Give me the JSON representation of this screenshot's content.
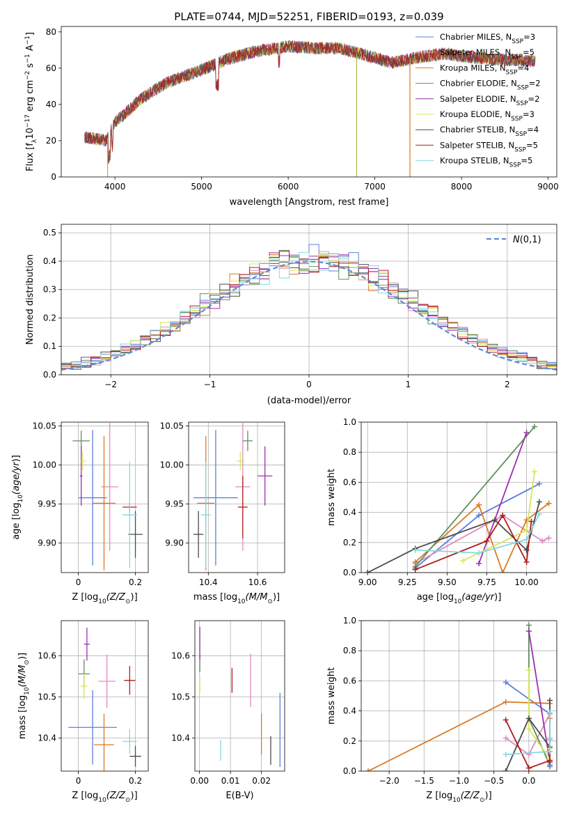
{
  "figure": {
    "title": "PLATE=0744, MJD=52251, FIBERID=0193, z=0.039"
  },
  "legend_entries": [
    {
      "key": "chabrier_miles",
      "label": "Chabrier MILES, N",
      "sub": "SSP",
      "tail": "=3",
      "color": "#5b7fdc"
    },
    {
      "key": "salpeter_miles",
      "label": "Salpeter MILES, N",
      "sub": "SSP",
      "tail": "=5",
      "color": "#e18ac0"
    },
    {
      "key": "kroupa_miles",
      "label": "Kroupa MILES, N",
      "sub": "SSP",
      "tail": "=4",
      "color": "#d97a26"
    },
    {
      "key": "chabrier_elodie",
      "label": "Chabrier ELODIE, N",
      "sub": "SSP",
      "tail": "=2",
      "color": "#5e8f5e"
    },
    {
      "key": "salpeter_elodie",
      "label": "Salpeter ELODIE, N",
      "sub": "SSP",
      "tail": "=2",
      "color": "#9b2fae"
    },
    {
      "key": "kroupa_elodie",
      "label": "Kroupa ELODIE, N",
      "sub": "SSP",
      "tail": "=3",
      "color": "#d4e85a"
    },
    {
      "key": "chabrier_stelib",
      "label": "Chabrier STELIB, N",
      "sub": "SSP",
      "tail": "=4",
      "color": "#4a4a4a"
    },
    {
      "key": "salpeter_stelib",
      "label": "Salpeter STELIB, N",
      "sub": "SSP",
      "tail": "=5",
      "color": "#b01c1c"
    },
    {
      "key": "kroupa_stelib",
      "label": "Kroupa STELIB, N",
      "sub": "SSP",
      "tail": "=5",
      "color": "#86d8de"
    }
  ],
  "chart_data": [
    {
      "id": "spectrum",
      "type": "line",
      "xlabel": "wavelength [Angstrom, rest frame]",
      "ylabel": "Flux [f",
      "ylabel_parts": {
        "a": "Flux [f",
        "sub": "λ",
        "b": "10",
        "sup1": "−17",
        "c": " erg cm",
        "sup2": "−2",
        "d": " s",
        "sup3": "−1",
        "e": " A",
        "sup4": "−1",
        "f": "]"
      },
      "xlim": [
        3380,
        9100
      ],
      "ylim": [
        0,
        83
      ],
      "xticks": [
        4000,
        5000,
        6000,
        7000,
        8000,
        9000
      ],
      "yticks": [
        0,
        20,
        40,
        60,
        80
      ],
      "continuum_x": [
        3650,
        3900,
        4000,
        4300,
        4600,
        5000,
        5300,
        5600,
        6000,
        6300,
        6600,
        6900,
        7200,
        7500,
        7800,
        8100,
        8400,
        8800
      ],
      "continuum_y": [
        22,
        20,
        30,
        43,
        52,
        59,
        65,
        69,
        72,
        71,
        71,
        67,
        63,
        66,
        68,
        66,
        65,
        64
      ],
      "spikes": [
        {
          "x": 3915,
          "color": "#a9b94a"
        },
        {
          "x": 6790,
          "color": "#a9b94a"
        },
        {
          "x": 7405,
          "color": "#d97a26"
        }
      ]
    },
    {
      "id": "residuals",
      "type": "histogram",
      "xlabel": "(data-model)/error",
      "ylabel": "Normed distribution",
      "xlim": [
        -2.5,
        2.5
      ],
      "ylim": [
        0,
        0.53
      ],
      "xticks": [
        -2,
        -1,
        0,
        1,
        2
      ],
      "yticks": [
        0.0,
        0.1,
        0.2,
        0.3,
        0.4,
        0.5
      ],
      "reference_label": "N(0,1)",
      "bin_width": 0.1
    },
    {
      "id": "age_vs_Z",
      "type": "scatter",
      "xlabel": "Z [log",
      "ylabel": "age  [log",
      "xlim": [
        -0.06,
        0.245
      ],
      "ylim": [
        9.862,
        10.055
      ],
      "xticks": [
        0.0,
        0.2
      ],
      "yticks": [
        9.9,
        9.95,
        10.0,
        10.05
      ],
      "points": [
        {
          "s": 0,
          "x": 0.05,
          "y": 9.958,
          "ex": [
            0.05,
            0.05
          ],
          "ey": [
            0.087,
            0.087
          ]
        },
        {
          "s": 1,
          "x": 0.11,
          "y": 9.972,
          "ex": [
            0.03,
            0.03
          ],
          "ey": [
            0.082,
            0.082
          ]
        },
        {
          "s": 2,
          "x": 0.09,
          "y": 9.951,
          "ex": [
            0.04,
            0.04
          ],
          "ey": [
            0.086,
            0.086
          ]
        },
        {
          "s": 3,
          "x": 0.01,
          "y": 10.031,
          "ex": [
            0.03,
            0.03
          ],
          "ey": [
            0.013,
            0.013
          ]
        },
        {
          "s": 4,
          "x": 0.01,
          "y": 9.986,
          "ex": [
            0.005,
            0.005
          ],
          "ey": [
            0.038,
            0.038
          ]
        },
        {
          "s": 5,
          "x": 0.015,
          "y": 10.005,
          "ex": [
            0.012,
            0.012
          ],
          "ey": [
            0.012,
            0.012
          ]
        },
        {
          "s": 6,
          "x": 0.2,
          "y": 9.911,
          "ex": [
            0.025,
            0.025
          ],
          "ey": [
            0.03,
            0.03
          ]
        },
        {
          "s": 7,
          "x": 0.18,
          "y": 9.946,
          "ex": [
            0.025,
            0.025
          ],
          "ey": [
            0.006,
            0.006
          ]
        },
        {
          "s": 8,
          "x": 0.18,
          "y": 9.936,
          "ex": [
            0.025,
            0.025
          ],
          "ey": [
            0.068,
            0.068
          ]
        }
      ]
    },
    {
      "id": "age_vs_mass",
      "type": "scatter",
      "xlabel": "mass [log",
      "ylabel": "",
      "xlim": [
        10.32,
        10.71
      ],
      "ylim": [
        9.862,
        10.055
      ],
      "xticks": [
        10.4,
        10.6
      ],
      "yticks": [
        9.9,
        9.95,
        10.0,
        10.05
      ],
      "points": [
        {
          "s": 0,
          "x": 10.43,
          "y": 9.958,
          "ex": [
            0.09,
            0.09
          ],
          "ey": [
            0.087,
            0.087
          ]
        },
        {
          "s": 1,
          "x": 10.54,
          "y": 9.972,
          "ex": [
            0.03,
            0.03
          ],
          "ey": [
            0.082,
            0.082
          ]
        },
        {
          "s": 2,
          "x": 10.39,
          "y": 9.951,
          "ex": [
            0.035,
            0.035
          ],
          "ey": [
            0.086,
            0.086
          ]
        },
        {
          "s": 3,
          "x": 10.56,
          "y": 10.031,
          "ex": [
            0.02,
            0.02
          ],
          "ey": [
            0.013,
            0.013
          ]
        },
        {
          "s": 4,
          "x": 10.63,
          "y": 9.986,
          "ex": [
            0.03,
            0.03
          ],
          "ey": [
            0.038,
            0.038
          ]
        },
        {
          "s": 5,
          "x": 10.53,
          "y": 10.005,
          "ex": [
            0.015,
            0.015
          ],
          "ey": [
            0.012,
            0.012
          ]
        },
        {
          "s": 6,
          "x": 10.36,
          "y": 9.911,
          "ex": [
            0.02,
            0.02
          ],
          "ey": [
            0.03,
            0.03
          ]
        },
        {
          "s": 7,
          "x": 10.54,
          "y": 9.946,
          "ex": [
            0.02,
            0.02
          ],
          "ey": [
            0.04,
            0.04
          ]
        },
        {
          "s": 8,
          "x": 10.39,
          "y": 9.936,
          "ex": [
            0.02,
            0.02
          ],
          "ey": [
            0.068,
            0.068
          ]
        }
      ]
    },
    {
      "id": "mass_weight_vs_age",
      "type": "line",
      "xlabel": "age  [log",
      "ylabel": "mass weight",
      "xlim": [
        8.96,
        10.19
      ],
      "ylim": [
        0,
        1
      ],
      "xticks": [
        9.0,
        9.25,
        9.5,
        9.75,
        10.0
      ],
      "xticklabels": [
        "9.00",
        "9.25",
        "9.50",
        "9.75",
        "10.00"
      ],
      "yticks": [
        0.0,
        0.2,
        0.4,
        0.6,
        0.8,
        1.0
      ],
      "series": [
        {
          "s": 0,
          "x": [
            9.3,
            9.7,
            10.08
          ],
          "y": [
            0.03,
            0.38,
            0.59
          ]
        },
        {
          "s": 1,
          "x": [
            9.3,
            9.85,
            10.1,
            10.14
          ],
          "y": [
            0.06,
            0.38,
            0.21,
            0.23
          ]
        },
        {
          "s": 2,
          "x": [
            9.3,
            9.7,
            9.85,
            10.0,
            10.14
          ],
          "y": [
            0.07,
            0.45,
            0.0,
            0.35,
            0.46
          ]
        },
        {
          "s": 3,
          "x": [
            9.3,
            10.05
          ],
          "y": [
            0.04,
            0.97
          ]
        },
        {
          "s": 4,
          "x": [
            9.7,
            10.0
          ],
          "y": [
            0.06,
            0.93
          ]
        },
        {
          "s": 5,
          "x": [
            9.6,
            10.0,
            10.05
          ],
          "y": [
            0.08,
            0.28,
            0.67
          ]
        },
        {
          "s": 6,
          "x": [
            9.0,
            9.3,
            9.8,
            10.0,
            10.08
          ],
          "y": [
            0.0,
            0.16,
            0.35,
            0.15,
            0.47
          ]
        },
        {
          "s": 7,
          "x": [
            9.3,
            9.75,
            9.85,
            10.0,
            10.03
          ],
          "y": [
            0.02,
            0.21,
            0.38,
            0.07,
            0.34
          ]
        },
        {
          "s": 8,
          "x": [
            9.3,
            9.7,
            10.0,
            10.08
          ],
          "y": [
            0.15,
            0.13,
            0.22,
            0.39
          ]
        }
      ]
    },
    {
      "id": "mass_vs_Z",
      "type": "scatter",
      "xlabel": "Z [log",
      "ylabel": "mass [log",
      "xlim": [
        -0.06,
        0.245
      ],
      "ylim": [
        10.32,
        10.685
      ],
      "xticks": [
        0.0,
        0.2
      ],
      "yticks": [
        10.4,
        10.5,
        10.6
      ],
      "points": [
        {
          "s": 0,
          "x": 0.05,
          "y": 10.426,
          "ex": [
            0.085,
            0.085
          ],
          "ey": [
            0.09,
            0.09
          ]
        },
        {
          "s": 1,
          "x": 0.1,
          "y": 10.538,
          "ex": [
            0.03,
            0.03
          ],
          "ey": [
            0.065,
            0.065
          ]
        },
        {
          "s": 2,
          "x": 0.09,
          "y": 10.384,
          "ex": [
            0.035,
            0.035
          ],
          "ey": [
            0.075,
            0.075
          ]
        },
        {
          "s": 3,
          "x": 0.02,
          "y": 10.556,
          "ex": [
            0.02,
            0.02
          ],
          "ey": [
            0.035,
            0.035
          ]
        },
        {
          "s": 4,
          "x": 0.03,
          "y": 10.628,
          "ex": [
            0.01,
            0.01
          ],
          "ey": [
            0.04,
            0.04
          ]
        },
        {
          "s": 5,
          "x": 0.02,
          "y": 10.526,
          "ex": [
            0.012,
            0.012
          ],
          "ey": [
            0.03,
            0.03
          ]
        },
        {
          "s": 6,
          "x": 0.2,
          "y": 10.356,
          "ex": [
            0.02,
            0.02
          ],
          "ey": [
            0.025,
            0.025
          ]
        },
        {
          "s": 7,
          "x": 0.18,
          "y": 10.54,
          "ex": [
            0.02,
            0.02
          ],
          "ey": [
            0.035,
            0.035
          ]
        },
        {
          "s": 8,
          "x": 0.18,
          "y": 10.392,
          "ex": [
            0.025,
            0.025
          ],
          "ey": [
            0.03,
            0.03
          ]
        }
      ]
    },
    {
      "id": "mass_vs_ebv",
      "type": "scatter",
      "xlabel": "E(B-V)",
      "ylabel": "",
      "xlim": [
        -0.0015,
        0.0275
      ],
      "ylim": [
        10.32,
        10.685
      ],
      "xticks": [
        0.0,
        0.01,
        0.02
      ],
      "xticklabels": [
        "0.00",
        "0.01",
        "0.02"
      ],
      "yticks": [
        10.4,
        10.5,
        10.6
      ],
      "points": [
        {
          "s": 0,
          "x": 0.026,
          "y": 10.42,
          "ex": [
            0,
            0
          ],
          "ey": [
            0.09,
            0.09
          ]
        },
        {
          "s": 1,
          "x": 0.0165,
          "y": 10.54,
          "ex": [
            0,
            0
          ],
          "ey": [
            0.065,
            0.065
          ]
        },
        {
          "s": 2,
          "x": 0.02,
          "y": 10.41,
          "ex": [
            0,
            0
          ],
          "ey": [
            0.05,
            0.05
          ]
        },
        {
          "s": 3,
          "x": 0.0001,
          "y": 10.58,
          "ex": [
            0,
            0
          ],
          "ey": [
            0.02,
            0.02
          ]
        },
        {
          "s": 4,
          "x": 0.0001,
          "y": 10.63,
          "ex": [
            0,
            0
          ],
          "ey": [
            0.04,
            0.04
          ]
        },
        {
          "s": 5,
          "x": 0.0001,
          "y": 10.53,
          "ex": [
            0,
            0
          ],
          "ey": [
            0.02,
            0.02
          ]
        },
        {
          "s": 6,
          "x": 0.023,
          "y": 10.37,
          "ex": [
            0,
            0
          ],
          "ey": [
            0.035,
            0.035
          ]
        },
        {
          "s": 7,
          "x": 0.0105,
          "y": 10.54,
          "ex": [
            0,
            0
          ],
          "ey": [
            0.03,
            0.03
          ]
        },
        {
          "s": 8,
          "x": 0.0068,
          "y": 10.37,
          "ex": [
            0,
            0
          ],
          "ey": [
            0.025,
            0.025
          ]
        }
      ]
    },
    {
      "id": "mass_weight_vs_Z",
      "type": "line",
      "xlabel": "Z [log",
      "ylabel": "mass weight",
      "xlim": [
        -2.4,
        0.4
      ],
      "ylim": [
        0,
        1
      ],
      "xticks": [
        -2.0,
        -1.5,
        -1.0,
        -0.5,
        0.0
      ],
      "xticklabels": [
        "−2.0",
        "−1.5",
        "−1.0",
        "−0.5",
        "0.0"
      ],
      "yticks": [
        0.0,
        0.2,
        0.4,
        0.6,
        0.8,
        1.0
      ],
      "series": [
        {
          "s": 0,
          "x": [
            -0.33,
            0.3,
            0.3
          ],
          "y": [
            0.59,
            0.38,
            0.03
          ]
        },
        {
          "s": 1,
          "x": [
            -0.33,
            0.0,
            0.3,
            0.3
          ],
          "y": [
            0.22,
            0.11,
            0.38,
            0.21
          ]
        },
        {
          "s": 2,
          "x": [
            -2.3,
            -0.33,
            0.3,
            0.3
          ],
          "y": [
            0.0,
            0.46,
            0.45,
            0.35
          ]
        },
        {
          "s": 3,
          "x": [
            0.0,
            0.0,
            0.3
          ],
          "y": [
            0.97,
            0.35,
            0.04
          ]
        },
        {
          "s": 4,
          "x": [
            0.0,
            0.3
          ],
          "y": [
            0.93,
            0.06
          ]
        },
        {
          "s": 5,
          "x": [
            0.0,
            0.0,
            0.3,
            0.3
          ],
          "y": [
            0.67,
            0.28,
            0.08,
            0.15
          ]
        },
        {
          "s": 6,
          "x": [
            -0.33,
            0.0,
            0.3,
            0.3
          ],
          "y": [
            0.0,
            0.35,
            0.16,
            0.47
          ]
        },
        {
          "s": 7,
          "x": [
            -0.33,
            0.0,
            0.3,
            0.3
          ],
          "y": [
            0.34,
            0.02,
            0.07,
            0.13
          ]
        },
        {
          "s": 8,
          "x": [
            -0.33,
            0.3,
            0.3,
            0.3
          ],
          "y": [
            0.11,
            0.13,
            0.22,
            0.39
          ]
        }
      ]
    }
  ]
}
